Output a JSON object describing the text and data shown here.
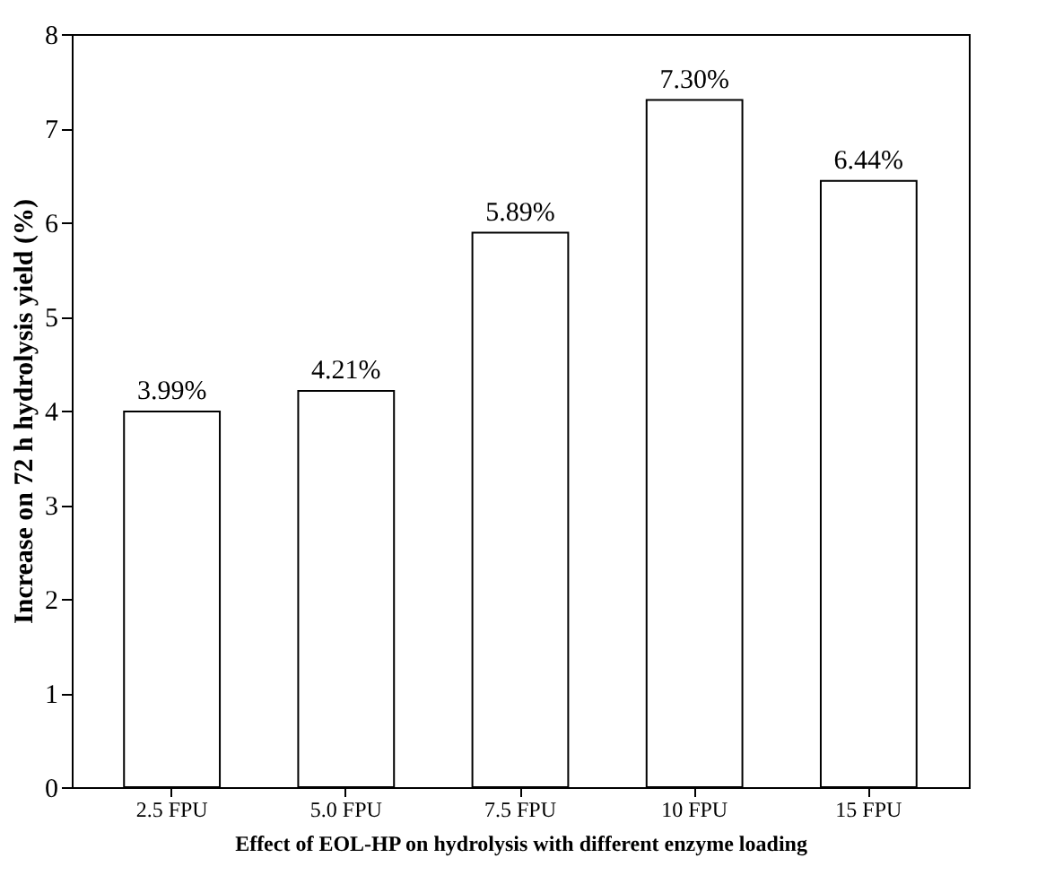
{
  "chart_data": {
    "type": "bar",
    "xlabel": "Effect of EOL-HP on hydrolysis with different enzyme loading",
    "ylabel": "Increase on 72 h hydrolysis yield (%)",
    "categories": [
      "2.5 FPU",
      "5.0 FPU",
      "7.5 FPU",
      "10 FPU",
      "15 FPU"
    ],
    "values": [
      3.99,
      4.21,
      5.89,
      7.3,
      6.44
    ],
    "value_labels": [
      "3.99%",
      "4.21%",
      "5.89%",
      "7.30%",
      "6.44%"
    ],
    "color": "#ffffff",
    "ylim": [
      0,
      8
    ],
    "yticks": [
      0,
      1,
      2,
      3,
      4,
      5,
      6,
      7,
      8
    ],
    "grid": false
  }
}
